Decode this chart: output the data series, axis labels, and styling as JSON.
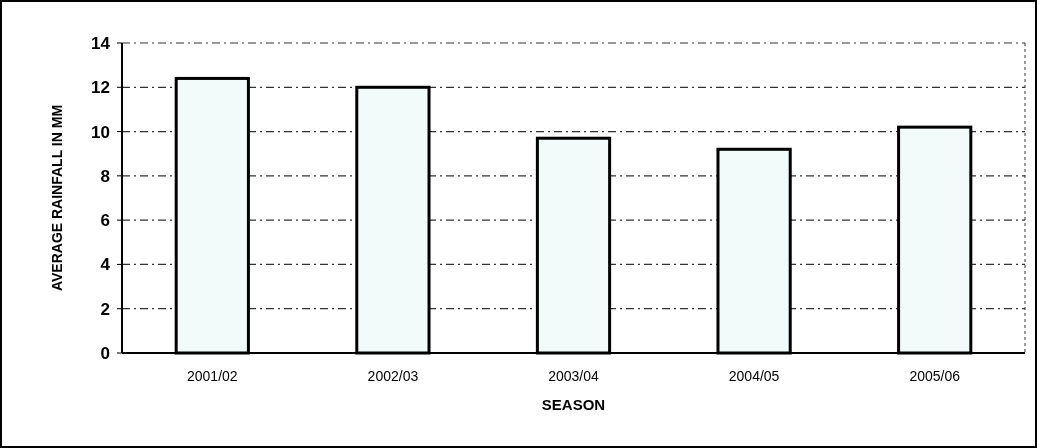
{
  "chart_data": {
    "type": "bar",
    "xlabel": "SEASON",
    "ylabel": "AVERAGE RAINFALL IN MM",
    "categories": [
      "2001/02",
      "2002/03",
      "2003/04",
      "2004/05",
      "2005/06"
    ],
    "values": [
      12.4,
      12.0,
      9.7,
      9.2,
      10.2
    ],
    "color": "#f3fafa",
    "ylim": [
      0,
      14
    ],
    "yticks": [
      0,
      2,
      4,
      6,
      8,
      10,
      12,
      14
    ],
    "grid": "y"
  }
}
